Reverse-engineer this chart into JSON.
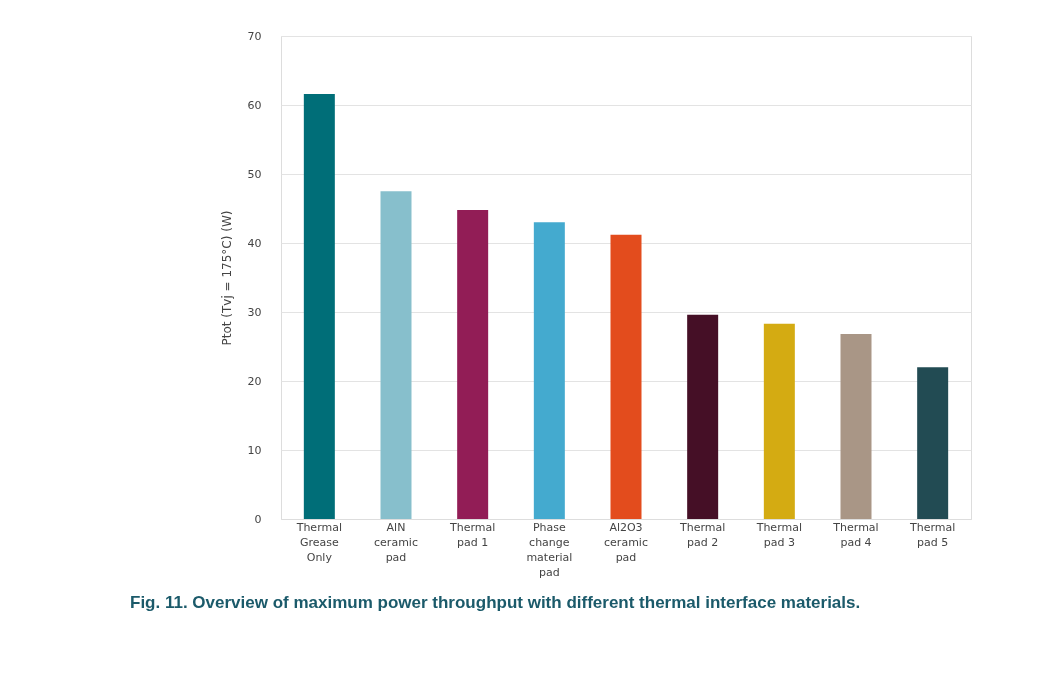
{
  "chart_data": {
    "type": "bar",
    "ylabel": "Ptot (Tvj = 175°C) (W)",
    "categories": [
      "Thermal\nGrease\nOnly",
      "AlN\nceramic\npad",
      "Thermal\npad 1",
      "Phase\nchange\nmaterial\npad",
      "Al2O3\nceramic\npad",
      "Thermal\npad 2",
      "Thermal\npad 3",
      "Thermal\npad 4",
      "Thermal\npad 5"
    ],
    "values": [
      61.6,
      47.5,
      44.8,
      43.0,
      41.2,
      29.6,
      28.3,
      26.8,
      22.0
    ],
    "colors": [
      "#006e78",
      "#87bfcc",
      "#921d56",
      "#44aacf",
      "#e34c1d",
      "#450f26",
      "#d4ab12",
      "#a99686",
      "#224b53"
    ],
    "ylim": [
      0,
      70
    ],
    "yticks": [
      0,
      10,
      20,
      30,
      40,
      50,
      60,
      70
    ],
    "grid": "y",
    "annotations": [
      "Fig. 11.  Overview of maximum power throughput with different thermal interface materials."
    ]
  }
}
